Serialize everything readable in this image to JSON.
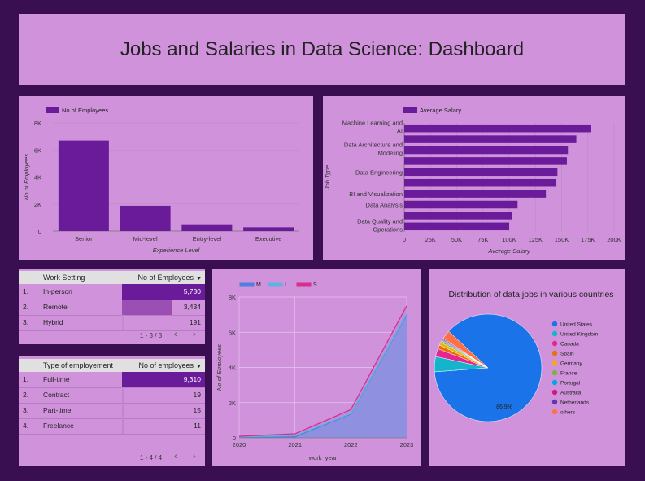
{
  "title": "Jobs and Salaries in Data Science: Dashboard",
  "colors": {
    "background": "#3a0f52",
    "panel": "#cf92db",
    "bar": "#6a1b9a"
  },
  "experience_chart": {
    "chart_data": {
      "type": "bar",
      "categories": [
        "Senior",
        "Mid-level",
        "Entry-level",
        "Executive"
      ],
      "series": [
        {
          "name": "No of Employees",
          "values": [
            6700,
            1870,
            500,
            280
          ]
        }
      ],
      "xlabel": "Experience Level",
      "ylabel": "No of Employees",
      "ylim": [
        0,
        8000
      ],
      "yticks": [
        "0",
        "2K",
        "4K",
        "6K",
        "8K"
      ],
      "grid": true,
      "legend": "top-left"
    }
  },
  "salary_chart": {
    "chart_data": {
      "type": "bar",
      "orientation": "horizontal",
      "categories": [
        "Machine Learning and AI",
        "",
        "Data Architecture and Modeling",
        "",
        "Data Engineering",
        "",
        "BI and Visualization",
        "Data Analysis",
        "",
        "Data Quality and Operations"
      ],
      "category_lines": [
        [
          "Machine Learning and",
          "AI"
        ],
        [],
        [
          "Data Architecture and",
          "Modeling"
        ],
        [],
        [
          "Data Engineering"
        ],
        [],
        [
          "BI and Visualization"
        ],
        [
          "Data Analysis"
        ],
        [],
        [
          "Data Quality and",
          "Operations"
        ]
      ],
      "series": [
        {
          "name": "Average Salary",
          "values": [
            178000,
            164000,
            156000,
            155000,
            146000,
            145000,
            135000,
            108000,
            103000,
            100000
          ]
        }
      ],
      "xlabel": "Average Salary",
      "ylabel": "Job Type",
      "xlim": [
        0,
        200000
      ],
      "xticks": [
        "0",
        "25K",
        "50K",
        "75K",
        "100K",
        "125K",
        "150K",
        "175K",
        "200K"
      ],
      "grid": true,
      "legend": "top-left"
    }
  },
  "work_setting_table": {
    "headers": [
      "Work Setting",
      "No of Employees"
    ],
    "sort_icon": "caret-down-icon",
    "rows": [
      {
        "index": "1.",
        "label": "In-person",
        "value": "5,730",
        "num": 5730
      },
      {
        "index": "2.",
        "label": "Remote",
        "value": "3,434",
        "num": 3434
      },
      {
        "index": "3.",
        "label": "Hybrid",
        "value": "191",
        "num": 191
      }
    ],
    "pager": "1 - 3 / 3",
    "prev": "‹",
    "next": "›"
  },
  "employment_table": {
    "headers": [
      "Type of employement",
      "No of employees"
    ],
    "sort_icon": "caret-down-icon",
    "rows": [
      {
        "index": "1.",
        "label": "Full-time",
        "value": "9,310",
        "num": 9310
      },
      {
        "index": "2.",
        "label": "Contract",
        "value": "19",
        "num": 19
      },
      {
        "index": "3.",
        "label": "Part-time",
        "value": "15",
        "num": 15
      },
      {
        "index": "4.",
        "label": "Freelance",
        "value": "11",
        "num": 11
      }
    ],
    "pager": "1 - 4 / 4",
    "prev": "‹",
    "next": "›"
  },
  "area_chart": {
    "chart_data": {
      "type": "area",
      "x": [
        "2020",
        "2021",
        "2022",
        "2023"
      ],
      "series": [
        {
          "name": "M",
          "values": [
            40,
            60,
            1350,
            7000
          ],
          "color": "#4f7fe0"
        },
        {
          "name": "L",
          "values": [
            60,
            120,
            1380,
            7050
          ],
          "color": "#5fb3e0"
        },
        {
          "name": "S",
          "values": [
            90,
            230,
            1600,
            7500
          ],
          "color": "#d62f8f"
        }
      ],
      "xlabel": "work_year",
      "ylabel": "No of Employees",
      "ylim": [
        0,
        8000
      ],
      "yticks": [
        "0",
        "2K",
        "4K",
        "6K",
        "8K"
      ],
      "grid": true,
      "legend": "top-left"
    }
  },
  "pie_chart": {
    "chart_data": {
      "type": "pie",
      "title": "Distribution of data jobs in various countries",
      "slices": [
        {
          "label": "United States",
          "value": 86.9,
          "color": "#1a73e8"
        },
        {
          "label": "United Kingdom",
          "value": 4.6,
          "color": "#12b5cb"
        },
        {
          "label": "Canada",
          "value": 2.4,
          "color": "#e52592"
        },
        {
          "label": "Spain",
          "value": 1.2,
          "color": "#e8710a"
        },
        {
          "label": "Germany",
          "value": 0.9,
          "color": "#f9ab00"
        },
        {
          "label": "France",
          "value": 0.5,
          "color": "#7cb342"
        },
        {
          "label": "Portugal",
          "value": 0.3,
          "color": "#00a8e8"
        },
        {
          "label": "Australia",
          "value": 0.3,
          "color": "#d01884"
        },
        {
          "label": "Netherlands",
          "value": 0.3,
          "color": "#5e35b1"
        },
        {
          "label": "others",
          "value": 2.6,
          "color": "#ff7043"
        }
      ],
      "data_label": "86.9%",
      "legend": "right"
    }
  }
}
